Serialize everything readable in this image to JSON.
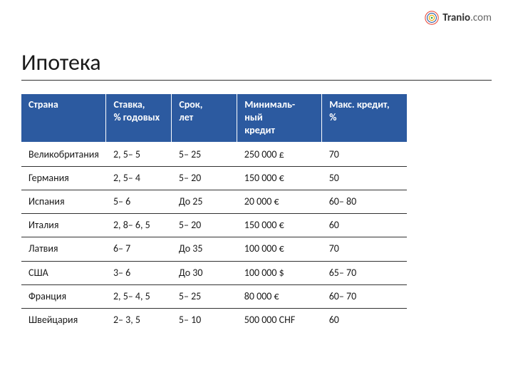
{
  "logo": {
    "brand": "Tranio",
    "tld": ".com"
  },
  "title": "Ипотека",
  "table": {
    "type": "table",
    "header_bg": "#2c5aa0",
    "header_fg": "#ffffff",
    "row_border": "#323232",
    "body_bg": "#ffffff",
    "body_fg": "#1a1a1a",
    "fontsize_header": 14,
    "fontsize_body": 14,
    "col_widths_pct": [
      22,
      17,
      17,
      22,
      22
    ],
    "columns": [
      "Страна",
      "Ставка,\n% годовых",
      "Срок,\nлет",
      "Минималь-\nный\nкредит",
      "Макс. кредит,\n%"
    ],
    "rows": [
      [
        "Великобритания",
        "2, 5– 5",
        "5– 25",
        "250 000 £",
        "70"
      ],
      [
        "Германия",
        "2, 5– 4",
        "5– 20",
        "150 000 €",
        "50"
      ],
      [
        "Испания",
        "5– 6",
        "До 25",
        "20 000 €",
        "60– 80"
      ],
      [
        "Италия",
        "2, 8– 6, 5",
        "5– 20",
        "150 000   €",
        "60"
      ],
      [
        "Латвия",
        "6– 7",
        "До 35",
        "100 000 €",
        "70"
      ],
      [
        "США",
        "3– 6",
        "До 30",
        "100 000 $",
        "65– 70"
      ],
      [
        "Франция",
        "2, 5– 4, 5",
        "5– 25",
        "80 000 €",
        "60– 70"
      ],
      [
        "Швейцария",
        "2– 3, 5",
        "5– 10",
        "500 000 CHF",
        "60"
      ]
    ]
  }
}
